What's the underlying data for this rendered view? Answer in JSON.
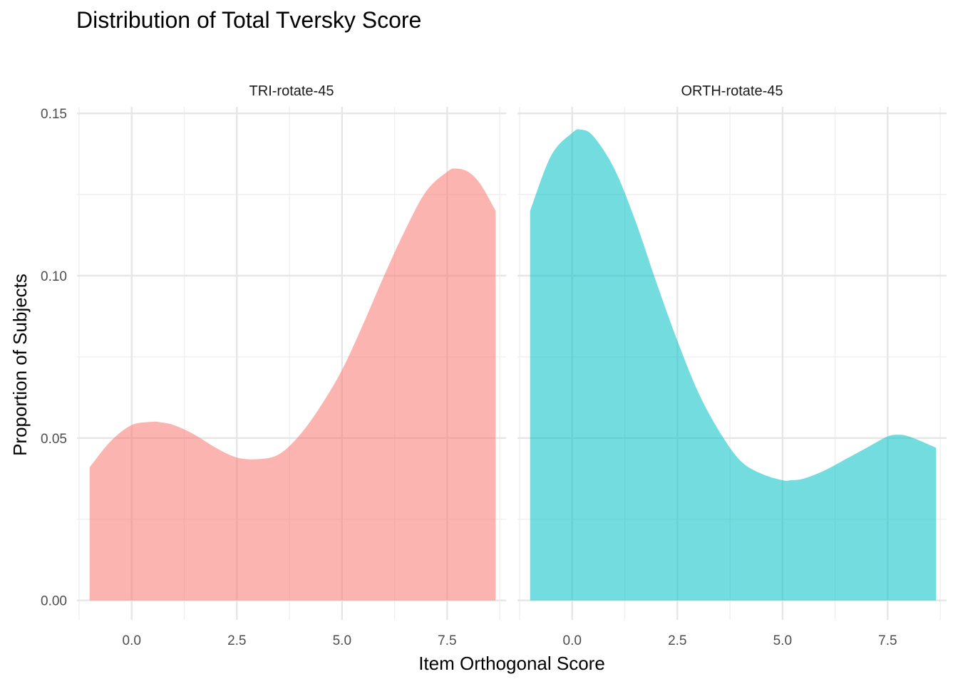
{
  "chart_data": {
    "type": "area",
    "title": "Distribution of Total Tversky Score",
    "xlabel": "Item Orthogonal Score",
    "ylabel": "Proportion of Subjects",
    "xlim": [
      -1.3,
      8.9
    ],
    "ylim": [
      -0.006,
      0.152
    ],
    "x_ticks": [
      0.0,
      2.5,
      5.0,
      7.5
    ],
    "x_tick_labels": [
      "0.0",
      "2.5",
      "5.0",
      "7.5"
    ],
    "y_ticks": [
      0.0,
      0.05,
      0.1,
      0.15
    ],
    "y_tick_labels": [
      "0.00",
      "0.05",
      "0.10",
      "0.15"
    ],
    "grid": true,
    "legend": "none",
    "panels": [
      {
        "name": "TRI-rotate-45",
        "color": "#F8766D",
        "x": [
          -1.0,
          -0.5,
          0.0,
          0.5,
          0.6,
          1.0,
          1.5,
          2.0,
          2.5,
          3.0,
          3.5,
          4.0,
          4.5,
          5.0,
          5.5,
          6.0,
          6.5,
          7.0,
          7.5,
          7.7,
          8.0,
          8.3,
          8.65
        ],
        "y": [
          0.041,
          0.049,
          0.054,
          0.055,
          0.055,
          0.054,
          0.051,
          0.047,
          0.044,
          0.0435,
          0.045,
          0.051,
          0.06,
          0.071,
          0.085,
          0.1,
          0.114,
          0.126,
          0.132,
          0.133,
          0.132,
          0.128,
          0.12
        ]
      },
      {
        "name": "ORTH-rotate-45",
        "color": "#00BFC4",
        "x": [
          -1.0,
          -0.5,
          0.0,
          0.2,
          0.5,
          1.0,
          1.5,
          2.0,
          2.5,
          3.0,
          3.5,
          4.0,
          4.5,
          5.0,
          5.2,
          5.5,
          6.0,
          6.5,
          7.0,
          7.5,
          7.8,
          8.0,
          8.3,
          8.65
        ],
        "y": [
          0.12,
          0.137,
          0.144,
          0.145,
          0.143,
          0.133,
          0.117,
          0.098,
          0.08,
          0.064,
          0.052,
          0.043,
          0.039,
          0.037,
          0.037,
          0.0375,
          0.04,
          0.0435,
          0.047,
          0.0505,
          0.051,
          0.0505,
          0.049,
          0.047
        ]
      }
    ]
  }
}
